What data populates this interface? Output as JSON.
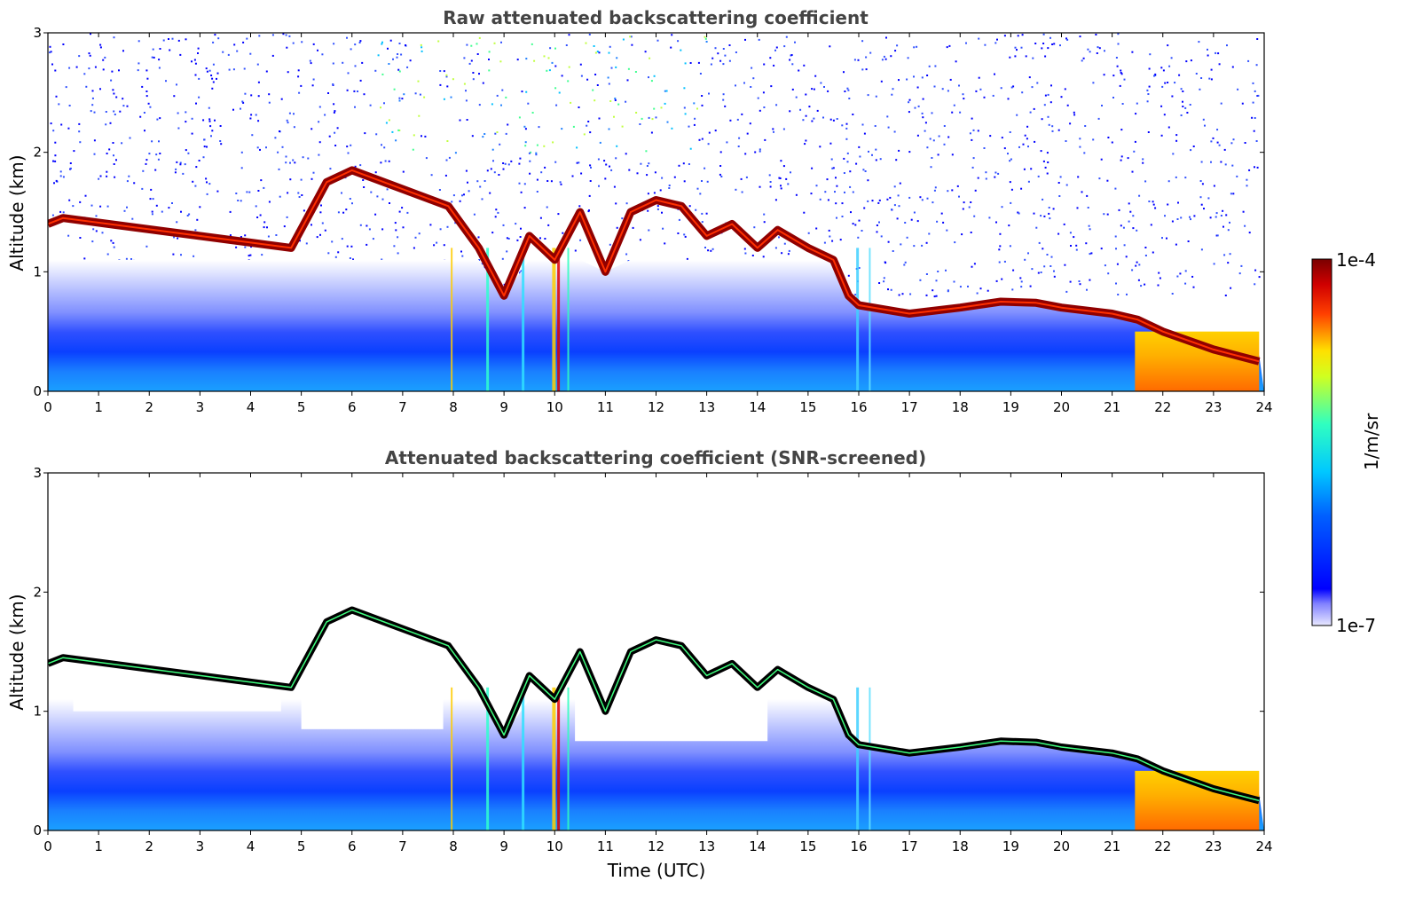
{
  "chart_data": [
    {
      "type": "heatmap",
      "title": "Raw attenuated backscattering coefficient",
      "xlabel": "",
      "ylabel": "Altitude (km)",
      "xlim": [
        0,
        24
      ],
      "ylim": [
        0,
        3
      ],
      "xticks": [
        "0",
        "1",
        "2",
        "3",
        "4",
        "5",
        "6",
        "7",
        "8",
        "9",
        "10",
        "11",
        "12",
        "13",
        "14",
        "15",
        "16",
        "17",
        "18",
        "19",
        "20",
        "21",
        "22",
        "23",
        "24"
      ],
      "yticks": [
        "0",
        "1",
        "2",
        "3"
      ],
      "screened": false,
      "cloud_layer": {
        "time": [
          0.0,
          0.3,
          4.8,
          5.5,
          6.0,
          7.9,
          8.5,
          9.0,
          9.5,
          10.0,
          10.5,
          11.0,
          11.5,
          12.0,
          12.5,
          13.0,
          13.5,
          14.0,
          14.4,
          15.0,
          15.5,
          15.8,
          16.0,
          17.0,
          18.0,
          18.8,
          19.5,
          20.0,
          21.0,
          21.5,
          22.0,
          23.0,
          23.9
        ],
        "altitude_km": [
          1.4,
          1.45,
          1.2,
          1.75,
          1.85,
          1.55,
          1.2,
          0.8,
          1.3,
          1.1,
          1.5,
          1.0,
          1.5,
          1.6,
          1.55,
          1.3,
          1.4,
          1.2,
          1.35,
          1.2,
          1.1,
          0.8,
          0.72,
          0.65,
          0.7,
          0.75,
          0.74,
          0.7,
          0.65,
          0.6,
          0.5,
          0.35,
          0.25
        ]
      }
    },
    {
      "type": "heatmap",
      "title": "Attenuated backscattering coefficient (SNR-screened)",
      "xlabel": "Time (UTC)",
      "ylabel": "Altitude (km)",
      "xlim": [
        0,
        24
      ],
      "ylim": [
        0,
        3
      ],
      "xticks": [
        "0",
        "1",
        "2",
        "3",
        "4",
        "5",
        "6",
        "7",
        "8",
        "9",
        "10",
        "11",
        "12",
        "13",
        "14",
        "15",
        "16",
        "17",
        "18",
        "19",
        "20",
        "21",
        "22",
        "23",
        "24"
      ],
      "yticks": [
        "0",
        "1",
        "2",
        "3"
      ],
      "screened": true,
      "cloud_layer": {
        "time": [
          0.0,
          0.3,
          4.8,
          5.5,
          6.0,
          7.9,
          8.5,
          9.0,
          9.5,
          10.0,
          10.5,
          11.0,
          11.5,
          12.0,
          12.5,
          13.0,
          13.5,
          14.0,
          14.4,
          15.0,
          15.5,
          15.8,
          16.0,
          17.0,
          18.0,
          18.8,
          19.5,
          20.0,
          21.0,
          21.5,
          22.0,
          23.0,
          23.9
        ],
        "altitude_km": [
          1.4,
          1.45,
          1.2,
          1.75,
          1.85,
          1.55,
          1.2,
          0.8,
          1.3,
          1.1,
          1.5,
          1.0,
          1.5,
          1.6,
          1.55,
          1.3,
          1.4,
          1.2,
          1.35,
          1.2,
          1.1,
          0.8,
          0.72,
          0.65,
          0.7,
          0.75,
          0.74,
          0.7,
          0.65,
          0.6,
          0.5,
          0.35,
          0.25
        ]
      }
    }
  ],
  "colorbar": {
    "max_label": "1e-4",
    "min_label": "1e-7",
    "unit_label": "1/m/sr"
  },
  "colors": {
    "low": "#e6e6ff",
    "blue": "#0000ff",
    "cyan": "#00e0ff",
    "yellow": "#ffff00",
    "red": "#ff2000",
    "dark_red": "#800000",
    "screened_cloud": "#000000"
  }
}
